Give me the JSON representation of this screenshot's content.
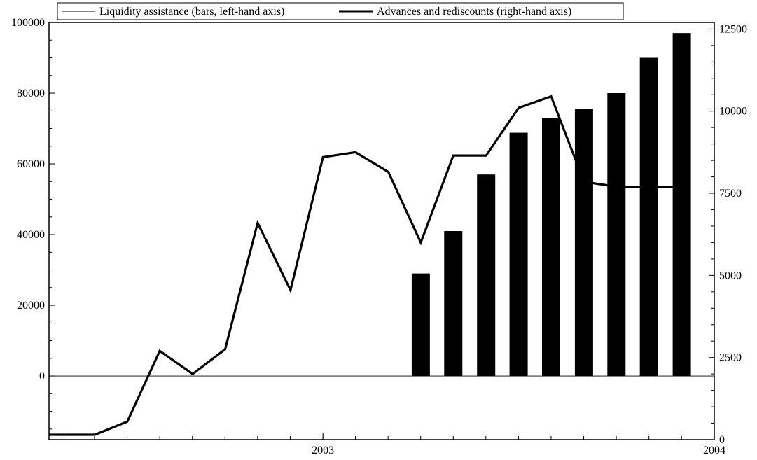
{
  "chart_data": {
    "type": "bar",
    "legend": {
      "placement": "top",
      "entries": [
        {
          "label": "Liquidity assistance (bars, left-hand axis)",
          "style": "thin-line"
        },
        {
          "label": "Advances and rediscounts (right-hand axis)",
          "style": "thick-line"
        }
      ]
    },
    "x_axis": {
      "tick_labels": [
        "2003",
        "2004"
      ],
      "range": [
        2002.3,
        2004.0
      ]
    },
    "y_left": {
      "range": [
        -18000,
        100000
      ],
      "ticks": [
        0,
        20000,
        40000,
        60000,
        80000,
        100000
      ],
      "tick_labels": [
        "0",
        "20000",
        "40000",
        "60000",
        "80000",
        "100000"
      ],
      "zero_line": true
    },
    "y_right": {
      "range": [
        0,
        12700
      ],
      "ticks": [
        0,
        2500,
        5000,
        7500,
        10000,
        12500
      ],
      "tick_labels": [
        "0",
        "2500",
        "5000",
        "7500",
        "10000",
        "12500"
      ]
    },
    "series": [
      {
        "name": "Liquidity assistance (bars, left-hand axis)",
        "type": "bar",
        "axis": "left",
        "color": "#000000",
        "x": [
          2003.25,
          2003.333,
          2003.417,
          2003.5,
          2003.583,
          2003.667,
          2003.75,
          2003.833,
          2003.917
        ],
        "values": [
          29000,
          41000,
          57000,
          68800,
          73000,
          75500,
          80000,
          90000,
          97000
        ]
      },
      {
        "name": "Advances and rediscounts (right-hand axis)",
        "type": "line",
        "axis": "right",
        "color": "#000000",
        "x": [
          2002.3,
          2002.417,
          2002.5,
          2002.583,
          2002.667,
          2002.75,
          2002.833,
          2002.917,
          2003.0,
          2003.083,
          2003.167,
          2003.25,
          2003.333,
          2003.417,
          2003.5,
          2003.583,
          2003.667,
          2003.75,
          2003.833,
          2003.917
        ],
        "values": [
          150,
          150,
          550,
          2700,
          2000,
          2750,
          6600,
          4550,
          8600,
          8750,
          8150,
          6000,
          8650,
          8650,
          10100,
          10450,
          7850,
          7700,
          7700,
          7700
        ]
      }
    ]
  }
}
